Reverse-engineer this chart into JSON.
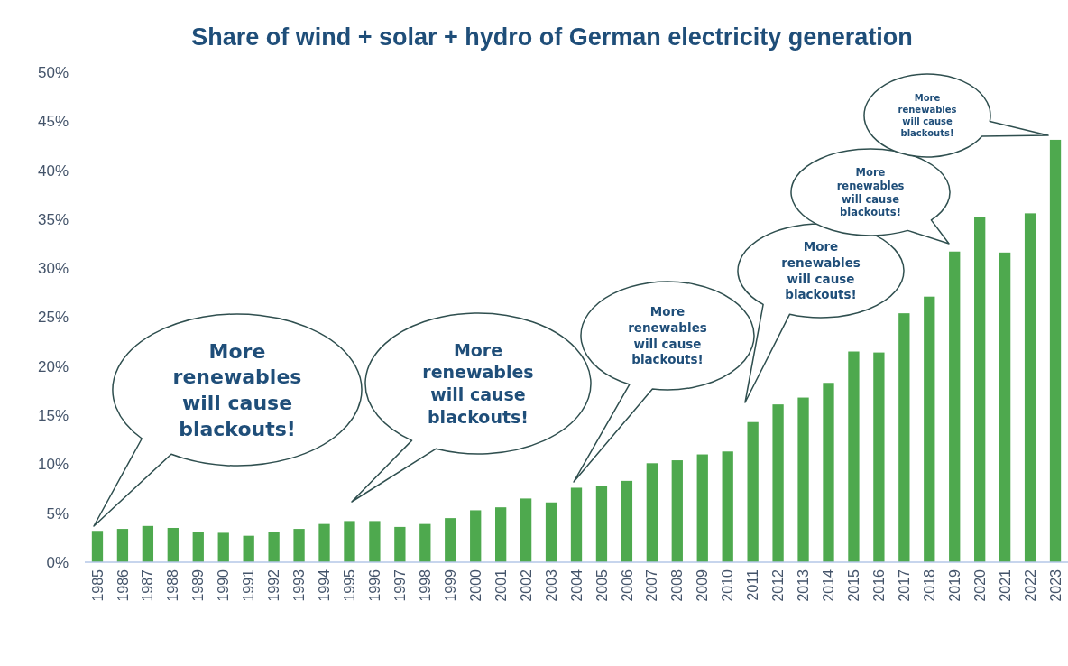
{
  "chart_data": {
    "type": "bar",
    "title": "Share of wind + solar + hydro of German electricity generation",
    "categories": [
      "1985",
      "1986",
      "1987",
      "1988",
      "1989",
      "1990",
      "1991",
      "1992",
      "1993",
      "1994",
      "1995",
      "1996",
      "1997",
      "1998",
      "1999",
      "2000",
      "2001",
      "2002",
      "2003",
      "2004",
      "2005",
      "2006",
      "2007",
      "2008",
      "2009",
      "2010",
      "2011",
      "2012",
      "2013",
      "2014",
      "2015",
      "2016",
      "2017",
      "2018",
      "2019",
      "2020",
      "2021",
      "2022",
      "2023"
    ],
    "values": [
      3.2,
      3.4,
      3.7,
      3.5,
      3.1,
      3.0,
      2.7,
      3.1,
      3.4,
      3.9,
      4.2,
      4.2,
      3.6,
      3.9,
      4.5,
      5.3,
      5.6,
      6.5,
      6.1,
      7.6,
      7.8,
      8.3,
      10.1,
      10.4,
      11.0,
      11.3,
      14.3,
      16.1,
      16.8,
      18.3,
      21.5,
      21.4,
      25.4,
      27.1,
      31.7,
      35.2,
      31.6,
      35.6,
      43.1
    ],
    "color": "#4ea94e",
    "ylim": [
      0,
      50
    ],
    "yticks": [
      {
        "value": 0,
        "label": "0%"
      },
      {
        "value": 5,
        "label": "5%"
      },
      {
        "value": 10,
        "label": "10%"
      },
      {
        "value": 15,
        "label": "15%"
      },
      {
        "value": 20,
        "label": "20%"
      },
      {
        "value": 25,
        "label": "25%"
      },
      {
        "value": 30,
        "label": "30%"
      },
      {
        "value": 35,
        "label": "35%"
      },
      {
        "value": 40,
        "label": "40%"
      },
      {
        "value": 45,
        "label": "45%"
      },
      {
        "value": 50,
        "label": "50%"
      }
    ],
    "grid": false,
    "annotations": [
      "More renewables will cause blackouts!",
      "More renewables will cause blackouts!",
      "More renewables will cause blackouts!",
      "More renewables will cause blackouts!",
      "More renewables will cause blackouts!",
      "More renewables will cause blackouts!"
    ]
  }
}
